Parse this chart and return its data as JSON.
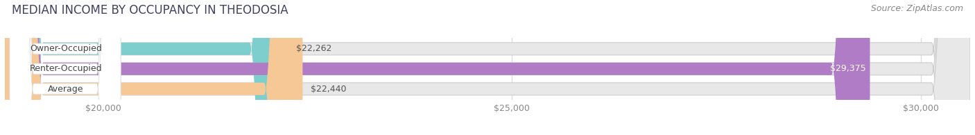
{
  "title": "MEDIAN INCOME BY OCCUPANCY IN THEODOSIA",
  "source": "Source: ZipAtlas.com",
  "categories": [
    "Owner-Occupied",
    "Renter-Occupied",
    "Average"
  ],
  "values": [
    22262,
    29375,
    22440
  ],
  "bar_colors": [
    "#7ecece",
    "#b07cc6",
    "#f5c896"
  ],
  "bar_labels": [
    "$22,262",
    "$29,375",
    "$22,440"
  ],
  "xlim_min": 18800,
  "xlim_max": 30600,
  "xticks": [
    20000,
    25000,
    30000
  ],
  "xtick_labels": [
    "$20,000",
    "$25,000",
    "$30,000"
  ],
  "background_color": "#ffffff",
  "bar_bg_color": "#e8e8e8",
  "title_color": "#404060",
  "title_fontsize": 12,
  "source_fontsize": 9,
  "label_fontsize": 9,
  "tick_fontsize": 9,
  "figsize": [
    14.06,
    1.96
  ],
  "dpi": 100
}
